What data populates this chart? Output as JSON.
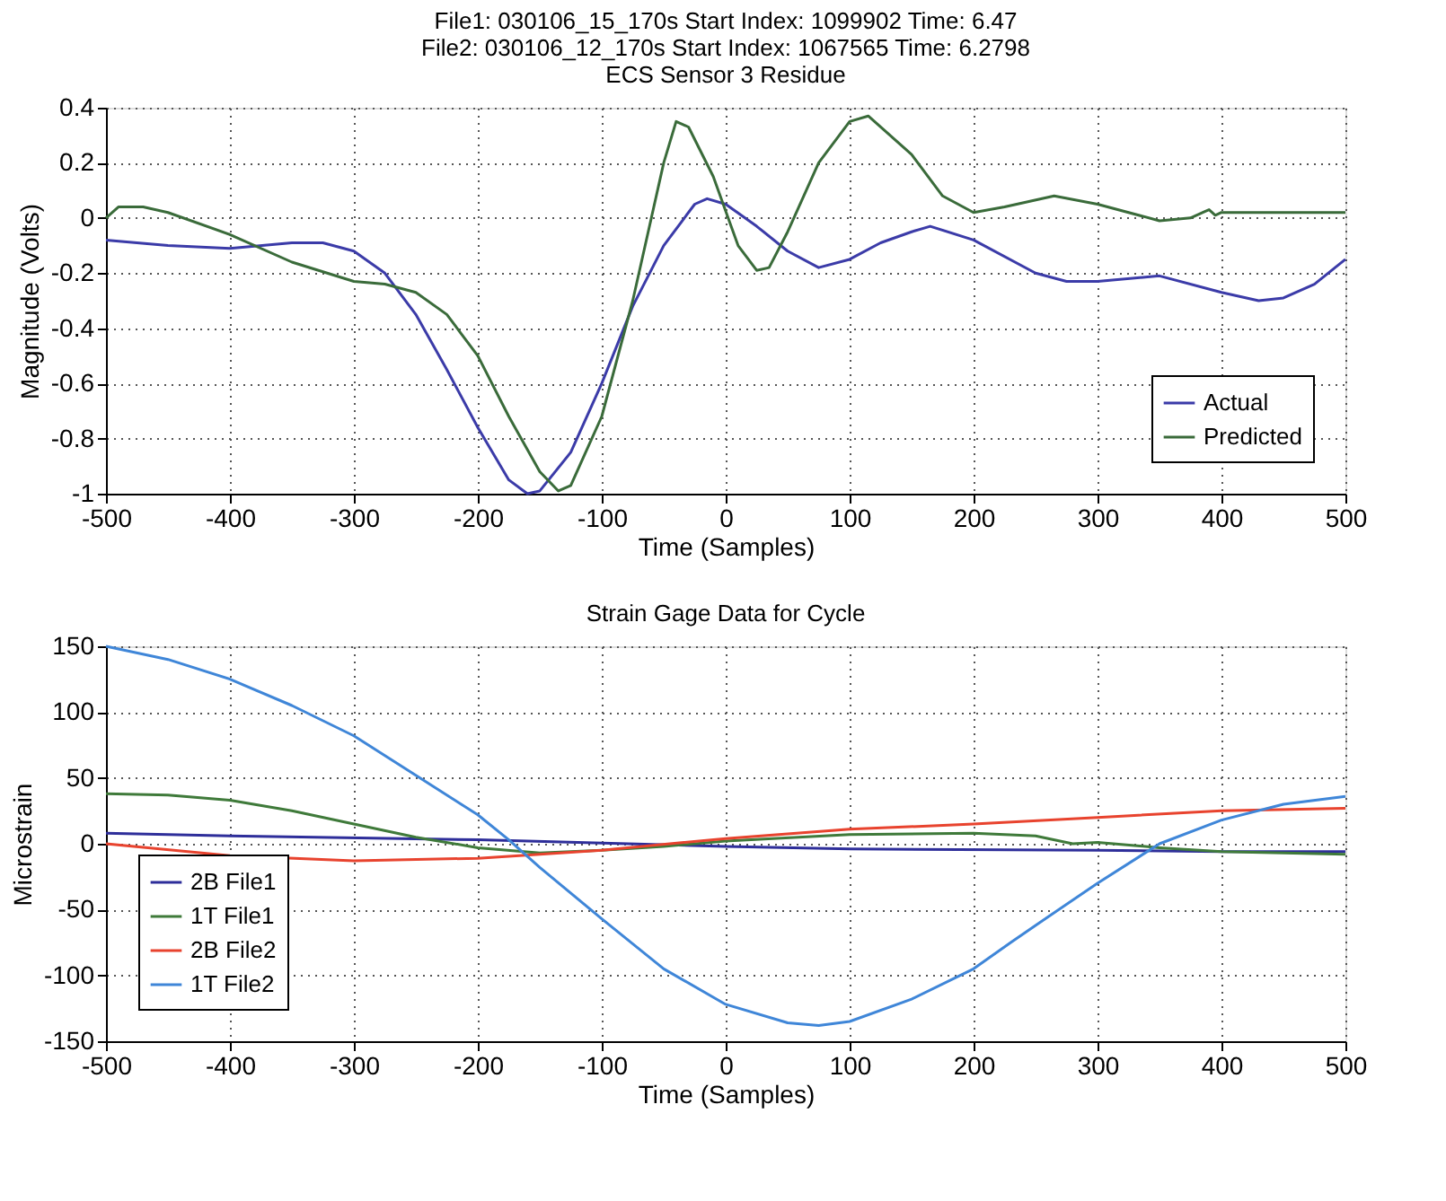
{
  "chart_data": [
    {
      "type": "line",
      "title": "File1: 030106_15_170s Start Index: 1099902 Time: 6.47\nFile2: 030106_12_170s Start Index: 1067565 Time: 6.2798\nECS Sensor 3 Residue",
      "xlabel": "Time (Samples)",
      "ylabel": "Magnitude (Volts)",
      "xlim": [
        -500,
        500
      ],
      "xticks": [
        -500,
        -400,
        -300,
        -200,
        -100,
        0,
        100,
        200,
        300,
        400,
        500
      ],
      "ylim": [
        -1,
        0.4
      ],
      "yticks": [
        -1,
        -0.8,
        -0.6,
        -0.4,
        -0.2,
        0,
        0.2,
        0.4
      ],
      "grid": true,
      "legend": "bottom right",
      "line_style": "solid",
      "series": [
        {
          "name": "Actual",
          "color": "#3b3ba8",
          "x": [
            -500,
            -450,
            -400,
            -350,
            -325,
            -300,
            -275,
            -250,
            -225,
            -200,
            -175,
            -160,
            -150,
            -125,
            -100,
            -75,
            -50,
            -25,
            -15,
            0,
            25,
            50,
            75,
            100,
            125,
            150,
            165,
            200,
            250,
            275,
            300,
            350,
            400,
            430,
            450,
            475,
            500
          ],
          "values": [
            -0.08,
            -0.1,
            -0.11,
            -0.09,
            -0.09,
            -0.12,
            -0.2,
            -0.35,
            -0.55,
            -0.76,
            -0.95,
            -1.0,
            -0.99,
            -0.85,
            -0.6,
            -0.32,
            -0.1,
            0.05,
            0.07,
            0.05,
            -0.03,
            -0.12,
            -0.18,
            -0.15,
            -0.09,
            -0.05,
            -0.03,
            -0.08,
            -0.2,
            -0.23,
            -0.23,
            -0.21,
            -0.27,
            -0.3,
            -0.29,
            -0.24,
            -0.15
          ]
        },
        {
          "name": "Predicted",
          "color": "#3a6b3a",
          "x": [
            -500,
            -490,
            -470,
            -450,
            -400,
            -350,
            -300,
            -275,
            -250,
            -225,
            -200,
            -175,
            -150,
            -135,
            -125,
            -100,
            -75,
            -50,
            -40,
            -30,
            -10,
            10,
            25,
            35,
            50,
            75,
            100,
            115,
            150,
            175,
            200,
            225,
            265,
            300,
            350,
            375,
            385,
            390,
            395,
            400,
            500
          ],
          "values": [
            0.0,
            0.04,
            0.04,
            0.02,
            -0.06,
            -0.16,
            -0.23,
            -0.24,
            -0.27,
            -0.35,
            -0.5,
            -0.72,
            -0.92,
            -0.99,
            -0.97,
            -0.72,
            -0.3,
            0.2,
            0.35,
            0.33,
            0.15,
            -0.1,
            -0.19,
            -0.18,
            -0.05,
            0.2,
            0.35,
            0.37,
            0.23,
            0.08,
            0.02,
            0.04,
            0.08,
            0.05,
            -0.01,
            0.0,
            0.02,
            0.03,
            0.01,
            0.02,
            0.02
          ]
        }
      ]
    },
    {
      "type": "line",
      "title": "Strain Gage Data for Cycle",
      "xlabel": "Time (Samples)",
      "ylabel": "Microstrain",
      "xlim": [
        -500,
        500
      ],
      "xticks": [
        -500,
        -400,
        -300,
        -200,
        -100,
        0,
        100,
        200,
        300,
        400,
        500
      ],
      "ylim": [
        -150,
        150
      ],
      "yticks": [
        -150,
        -100,
        -50,
        0,
        50,
        100,
        150
      ],
      "grid": true,
      "legend": "bottom left",
      "line_style": "solid",
      "series": [
        {
          "name": "2B File1",
          "color": "#2e2e9a",
          "x": [
            -500,
            -400,
            -200,
            0,
            100,
            300,
            400,
            500
          ],
          "values": [
            8,
            6,
            3,
            -2,
            -4,
            -5,
            -6,
            -6
          ]
        },
        {
          "name": "1T File1",
          "color": "#3f7a3a",
          "x": [
            -500,
            -450,
            -400,
            -350,
            -300,
            -250,
            -200,
            -150,
            -100,
            -50,
            0,
            100,
            200,
            250,
            280,
            300,
            350,
            400,
            500
          ],
          "values": [
            38,
            37,
            33,
            25,
            15,
            5,
            -3,
            -7,
            -5,
            -2,
            2,
            7,
            8,
            6,
            0,
            1,
            -3,
            -6,
            -8
          ]
        },
        {
          "name": "2B File2",
          "color": "#e8432e",
          "x": [
            -500,
            -400,
            -300,
            -200,
            -100,
            0,
            100,
            200,
            300,
            400,
            500
          ],
          "values": [
            0,
            -9,
            -13,
            -11,
            -5,
            4,
            11,
            15,
            20,
            25,
            27
          ]
        },
        {
          "name": "1T File2",
          "color": "#3f86d8",
          "x": [
            -500,
            -450,
            -400,
            -350,
            -300,
            -250,
            -200,
            -175,
            -150,
            -100,
            -50,
            0,
            50,
            75,
            100,
            150,
            200,
            230,
            250,
            300,
            350,
            400,
            450,
            500
          ],
          "values": [
            150,
            140,
            125,
            105,
            82,
            52,
            22,
            3,
            -18,
            -57,
            -95,
            -122,
            -136,
            -138,
            -135,
            -118,
            -95,
            -75,
            -62,
            -30,
            0,
            18,
            30,
            36
          ]
        }
      ]
    }
  ]
}
